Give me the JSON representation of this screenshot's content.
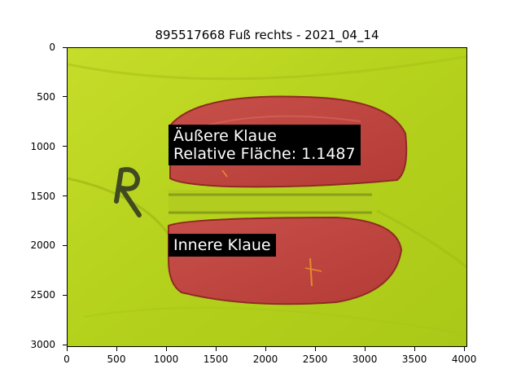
{
  "title": "895517668 Fuß rechts - 2021_04_14",
  "axes": {
    "xlim": [
      0,
      4032
    ],
    "ylim": [
      0,
      3024
    ],
    "x_ticks": [
      "0",
      "500",
      "1000",
      "1500",
      "2000",
      "2500",
      "3000",
      "3500",
      "4000"
    ],
    "y_ticks": [
      "0",
      "500",
      "1000",
      "1500",
      "2000",
      "2500",
      "3000"
    ]
  },
  "annotations": {
    "outer_claw_line1": "Äußere Klaue",
    "outer_claw_line2": "Relative Fläche: 1.1487",
    "inner_claw": "Innere Klaue"
  },
  "photo": {
    "handwritten_letter": "R",
    "colors": {
      "background_sheet": "#b7d31f",
      "claw_overlay": "#c0473f",
      "claw_outline": "#8f2a24"
    }
  }
}
